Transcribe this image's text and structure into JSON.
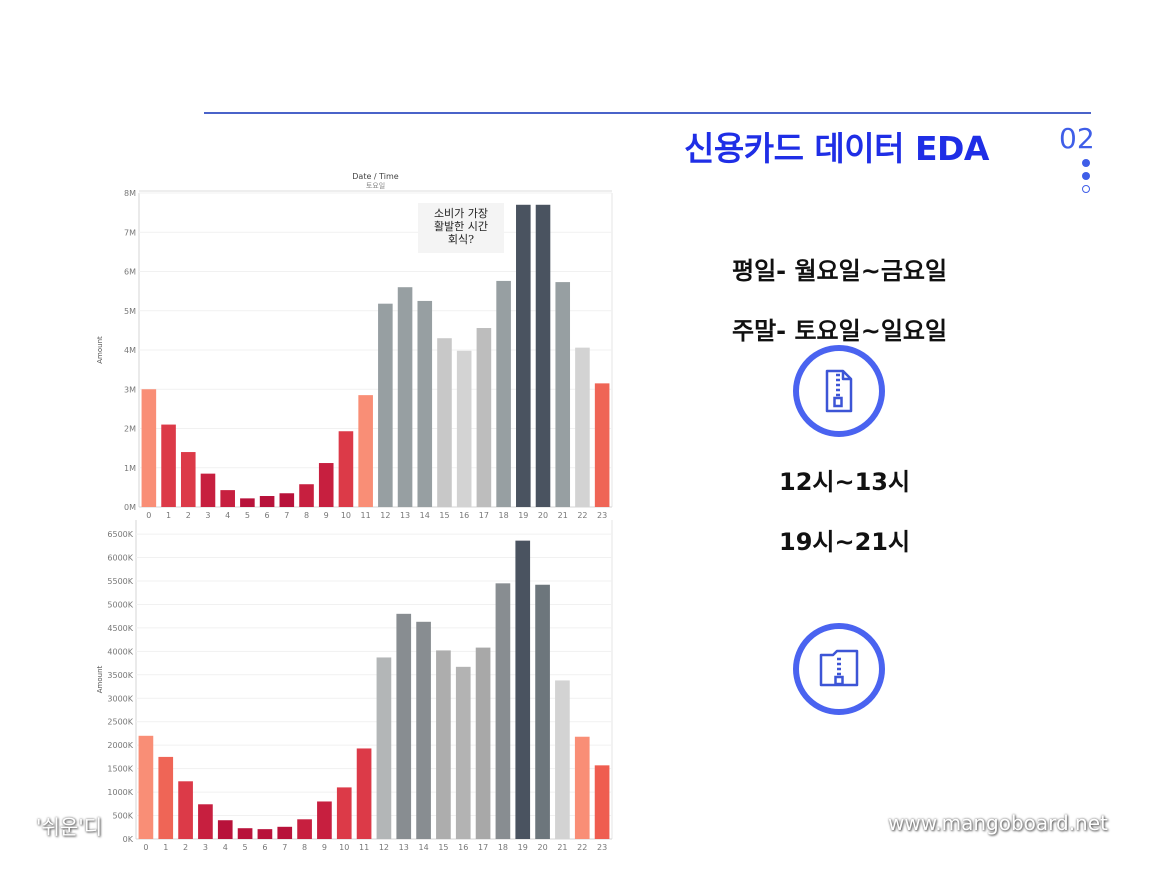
{
  "slide": {
    "title": "신용카드 데이터 EDA",
    "page_number": "02",
    "weekday_text": "평일- 월요일~금요일",
    "weekend_text": "주말- 토요일~일요일",
    "time_range_1": "12시~13시",
    "time_range_2": "19시~21시",
    "watermark_left": "'쉬운'디",
    "watermark_right": "www.mangoboard.net",
    "note_lines": [
      "소비가 가장",
      "활발한 시간",
      "회식?"
    ],
    "icons": [
      "zip-file-icon",
      "zip-folder-icon"
    ],
    "accent_color": "#1f2ee6"
  },
  "chart_data": [
    {
      "type": "bar",
      "title": "Date / Time",
      "subtitle": "토요일",
      "ylabel": "Amount",
      "categories": [
        "0",
        "1",
        "2",
        "3",
        "4",
        "5",
        "6",
        "7",
        "8",
        "9",
        "10",
        "11",
        "12",
        "13",
        "14",
        "15",
        "16",
        "17",
        "18",
        "19",
        "20",
        "21",
        "22",
        "23"
      ],
      "values": [
        3000000,
        2100000,
        1400000,
        850000,
        430000,
        220000,
        280000,
        350000,
        580000,
        1120000,
        1930000,
        2850000,
        5180000,
        5600000,
        5250000,
        4300000,
        3980000,
        4560000,
        5760000,
        7700000,
        7700000,
        5730000,
        4060000,
        3150000
      ],
      "colors": [
        "#f98e76",
        "#dc3a48",
        "#dc3a48",
        "#c71f3f",
        "#c71f3f",
        "#b8123a",
        "#b8123a",
        "#b8123a",
        "#c71f3f",
        "#c71f3f",
        "#dc3a48",
        "#f98e76",
        "#979fa2",
        "#979fa2",
        "#979fa2",
        "#c8c8c8",
        "#d3d3d3",
        "#bdbdbd",
        "#979fa2",
        "#4a5360",
        "#4a5360",
        "#979fa2",
        "#d3d3d3",
        "#ef6556"
      ],
      "ylim": [
        0,
        8000000
      ],
      "yticks": [
        0,
        1000000,
        2000000,
        3000000,
        4000000,
        5000000,
        6000000,
        7000000,
        8000000
      ],
      "ytick_labels": [
        "0M",
        "1M",
        "2M",
        "3M",
        "4M",
        "5M",
        "6M",
        "7M",
        "8M"
      ]
    },
    {
      "type": "bar",
      "ylabel": "Amount",
      "categories": [
        "0",
        "1",
        "2",
        "3",
        "4",
        "5",
        "6",
        "7",
        "8",
        "9",
        "10",
        "11",
        "12",
        "13",
        "14",
        "15",
        "16",
        "17",
        "18",
        "19",
        "20",
        "21",
        "22",
        "23"
      ],
      "values": [
        2200000,
        1750000,
        1230000,
        740000,
        400000,
        230000,
        210000,
        260000,
        420000,
        800000,
        1100000,
        1930000,
        3870000,
        4800000,
        4630000,
        4020000,
        3670000,
        4080000,
        5450000,
        6360000,
        5420000,
        3380000,
        2180000,
        1570000
      ],
      "colors": [
        "#f98e76",
        "#ef6556",
        "#dc3a48",
        "#c71f3f",
        "#b8123a",
        "#b8123a",
        "#b8123a",
        "#b8123a",
        "#c71f3f",
        "#c71f3f",
        "#dc3a48",
        "#dc3a48",
        "#b3b6b7",
        "#888d91",
        "#888d91",
        "#adadad",
        "#b3b3b3",
        "#a8a8a8",
        "#888d91",
        "#4a5360",
        "#6d767c",
        "#d3d3d3",
        "#f98e76",
        "#ef5d50"
      ],
      "ylim": [
        0,
        6800000
      ],
      "yticks": [
        0,
        500000,
        1000000,
        1500000,
        2000000,
        2500000,
        3000000,
        3500000,
        4000000,
        4500000,
        5000000,
        5500000,
        6000000,
        6500000
      ],
      "ytick_labels": [
        "0K",
        "500K",
        "1000K",
        "1500K",
        "2000K",
        "2500K",
        "3000K",
        "3500K",
        "4000K",
        "4500K",
        "5000K",
        "5500K",
        "6000K",
        "6500K"
      ]
    }
  ]
}
